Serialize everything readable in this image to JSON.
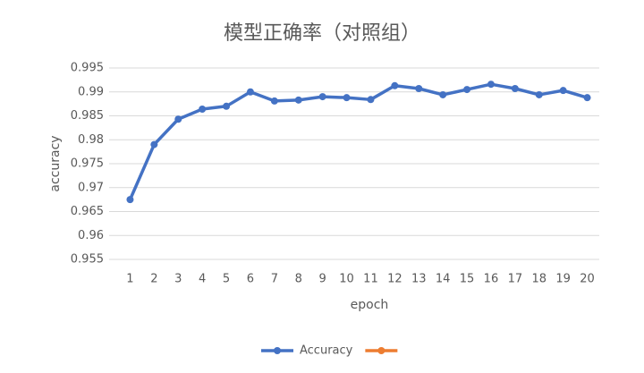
{
  "chart_data": {
    "type": "line",
    "title": "模型正确率（对照组）",
    "x_label": "epoch",
    "y_label": "accuracy",
    "categories": [
      1,
      2,
      3,
      4,
      5,
      6,
      7,
      8,
      9,
      10,
      11,
      12,
      13,
      14,
      15,
      16,
      17,
      18,
      19,
      20
    ],
    "series": [
      {
        "name": "Accuracy",
        "color": "#4472c4",
        "values": [
          0.9675,
          0.979,
          0.9843,
          0.9864,
          0.987,
          0.99,
          0.9881,
          0.9883,
          0.989,
          0.9888,
          0.9884,
          0.9913,
          0.9907,
          0.9894,
          0.9905,
          0.9916,
          0.9907,
          0.9894,
          0.9903,
          0.9888
        ]
      },
      {
        "color": "#ed7d31",
        "values": [
          null,
          null,
          null,
          null,
          null,
          null,
          null,
          null,
          null,
          null,
          null,
          null,
          null,
          null,
          null,
          null,
          null,
          null,
          null,
          null
        ]
      }
    ],
    "ylim": [
      0.955,
      0.995
    ],
    "yticks": [
      0.955,
      0.96,
      0.965,
      0.97,
      0.975,
      0.98,
      0.985,
      0.99,
      0.995
    ],
    "grid": true,
    "legend": "bottom"
  }
}
